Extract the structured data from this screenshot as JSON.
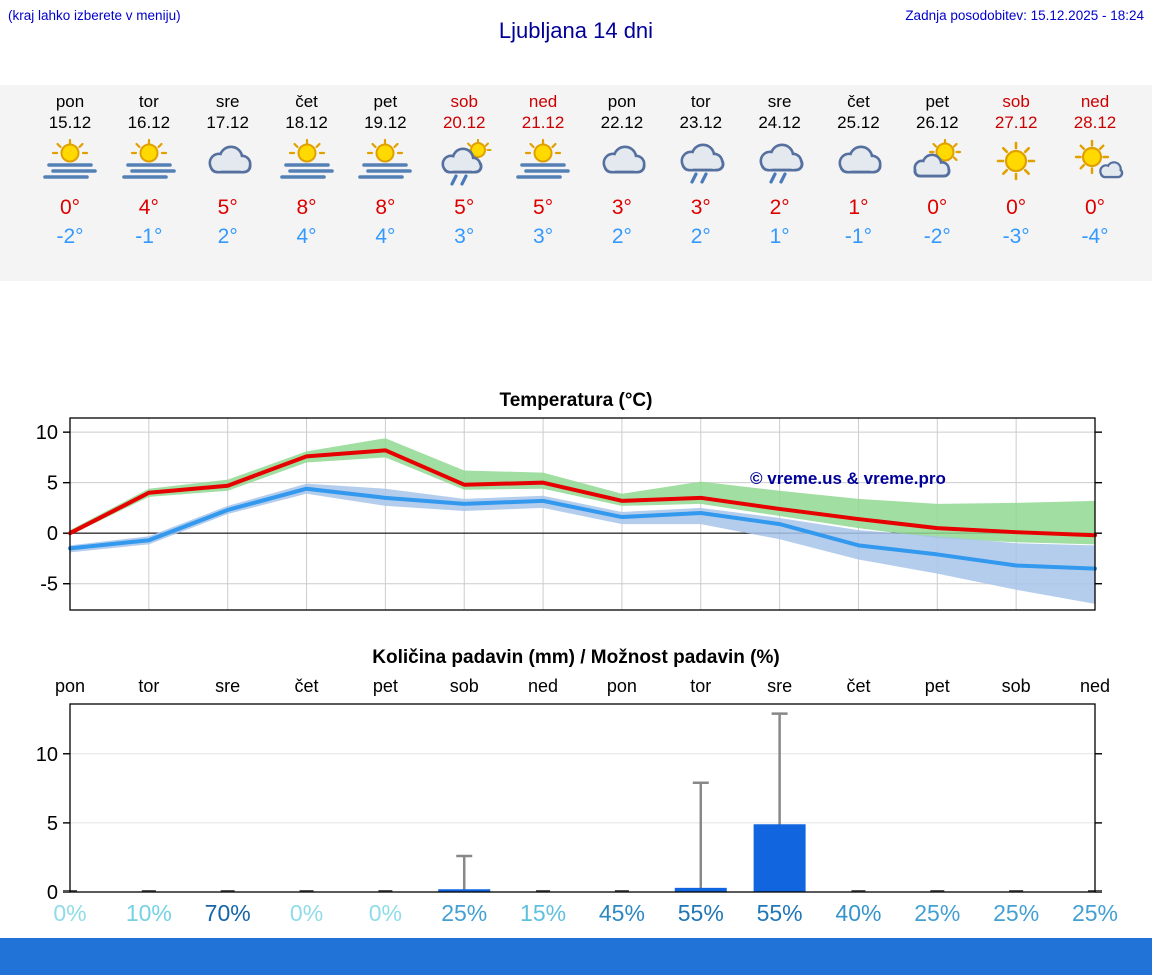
{
  "header": {
    "menu_hint": "(kraj lahko izberete v meniju)",
    "title": "Ljubljana 14 dni",
    "last_update": "Zadnja posodobitev: 15.12.2025 - 18:24"
  },
  "colors": {
    "accent_blue": "#0000cc",
    "title_navy": "#000099",
    "high_temp": "#dd0000",
    "low_temp": "#3399ff",
    "weekend_red": "#cc0000",
    "strip_background": "#f4f4f4",
    "footer_bar": "#2173d8"
  },
  "forecast_days": [
    {
      "name": "pon",
      "date": "15.12",
      "icon": "fog_sun",
      "high": "0°",
      "low": "-2°",
      "weekend": false
    },
    {
      "name": "tor",
      "date": "16.12",
      "icon": "fog_sun",
      "high": "4°",
      "low": "-1°",
      "weekend": false
    },
    {
      "name": "sre",
      "date": "17.12",
      "icon": "cloudy",
      "high": "5°",
      "low": "2°",
      "weekend": false
    },
    {
      "name": "čet",
      "date": "18.12",
      "icon": "fog_sun",
      "high": "8°",
      "low": "4°",
      "weekend": false
    },
    {
      "name": "pet",
      "date": "19.12",
      "icon": "fog_sun",
      "high": "8°",
      "low": "4°",
      "weekend": false
    },
    {
      "name": "sob",
      "date": "20.12",
      "icon": "shower_sun",
      "high": "5°",
      "low": "3°",
      "weekend": true
    },
    {
      "name": "ned",
      "date": "21.12",
      "icon": "fog_sun",
      "high": "5°",
      "low": "3°",
      "weekend": true
    },
    {
      "name": "pon",
      "date": "22.12",
      "icon": "cloudy",
      "high": "3°",
      "low": "2°",
      "weekend": false
    },
    {
      "name": "tor",
      "date": "23.12",
      "icon": "shower",
      "high": "3°",
      "low": "2°",
      "weekend": false
    },
    {
      "name": "sre",
      "date": "24.12",
      "icon": "shower",
      "high": "2°",
      "low": "1°",
      "weekend": false
    },
    {
      "name": "čet",
      "date": "25.12",
      "icon": "cloudy",
      "high": "1°",
      "low": "-1°",
      "weekend": false
    },
    {
      "name": "pet",
      "date": "26.12",
      "icon": "partly",
      "high": "0°",
      "low": "-2°",
      "weekend": false
    },
    {
      "name": "sob",
      "date": "27.12",
      "icon": "sunny",
      "high": "0°",
      "low": "-3°",
      "weekend": true
    },
    {
      "name": "ned",
      "date": "28.12",
      "icon": "sunny_cloud",
      "high": "0°",
      "low": "-4°",
      "weekend": true
    }
  ],
  "chart_data": [
    {
      "type": "line",
      "title": "Temperatura (°C)",
      "categories": [
        "pon",
        "tor",
        "sre",
        "čet",
        "pet",
        "sob",
        "ned",
        "pon",
        "tor",
        "sre",
        "čet",
        "pet",
        "sob",
        "ned"
      ],
      "series": [
        {
          "name": "max temperature",
          "color": "#e60000",
          "values": [
            0,
            4,
            4.7,
            7.6,
            8.2,
            4.8,
            5,
            3.2,
            3.5,
            2.4,
            1.4,
            0.5,
            0.1,
            -0.2
          ]
        },
        {
          "name": "min temperature",
          "color": "#3399ee",
          "values": [
            -1.5,
            -0.7,
            2.3,
            4.4,
            3.5,
            2.9,
            3.2,
            1.6,
            2,
            0.9,
            -1.2,
            -2.1,
            -3.2,
            -3.5
          ]
        }
      ],
      "bands": {
        "max_color": "#90d890",
        "max_upper": [
          0.3,
          4.4,
          5.3,
          8.1,
          9.4,
          6.2,
          6,
          3.9,
          5.1,
          4.2,
          3.4,
          2.9,
          3,
          3.2
        ],
        "max_lower": [
          -0.2,
          3.6,
          4.2,
          7,
          7.5,
          4.3,
          4.4,
          2.7,
          2.9,
          1.7,
          0.5,
          -0.5,
          -0.9,
          -1.1
        ],
        "min_color": "#a8c4ea",
        "min_upper": [
          -1.2,
          -0.3,
          2.7,
          4.9,
          4.4,
          3.4,
          3.7,
          2.1,
          2.5,
          1.5,
          0.3,
          -0.3,
          -1,
          -1.2
        ],
        "min_lower": [
          -1.9,
          -1.1,
          1.9,
          3.9,
          2.7,
          2.2,
          2.5,
          0.9,
          0.9,
          -0.6,
          -2.6,
          -4,
          -5.6,
          -7
        ]
      },
      "yticks": [
        10,
        5,
        0,
        -5
      ],
      "ylim": [
        -7.6,
        11.4
      ],
      "grid": true,
      "watermark": "© vreme.us & vreme.pro"
    },
    {
      "type": "bar",
      "title": "Količina padavin (mm) / Možnost padavin (%)",
      "categories": [
        "pon",
        "tor",
        "sre",
        "čet",
        "pet",
        "sob",
        "ned",
        "pon",
        "tor",
        "sre",
        "čet",
        "pet",
        "sob",
        "ned"
      ],
      "values": [
        0,
        0,
        0,
        0,
        0,
        0.2,
        0,
        0,
        0.3,
        4.9,
        0,
        0,
        0,
        0
      ],
      "whiskers": [
        0,
        0,
        0,
        0,
        0,
        2.6,
        0,
        0,
        7.9,
        12.9,
        0,
        0,
        0,
        0
      ],
      "bar_color": "#1166e0",
      "whisker_color": "#888888",
      "yticks": [
        0,
        5,
        10
      ],
      "ylim": [
        0,
        13.6
      ],
      "probabilities": [
        {
          "label": "0%",
          "color": "#8fdce8"
        },
        {
          "label": "10%",
          "color": "#74d2e4"
        },
        {
          "label": "70%",
          "color": "#1565a8"
        },
        {
          "label": "0%",
          "color": "#8fdce8"
        },
        {
          "label": "0%",
          "color": "#8fdce8"
        },
        {
          "label": "25%",
          "color": "#44a0d2"
        },
        {
          "label": "15%",
          "color": "#5fc0de"
        },
        {
          "label": "45%",
          "color": "#2d88c2"
        },
        {
          "label": "55%",
          "color": "#2176b6"
        },
        {
          "label": "55%",
          "color": "#2176b6"
        },
        {
          "label": "40%",
          "color": "#3794ca"
        },
        {
          "label": "25%",
          "color": "#44a0d2"
        },
        {
          "label": "25%",
          "color": "#44a0d2"
        },
        {
          "label": "25%",
          "color": "#44a0d2"
        }
      ]
    }
  ]
}
